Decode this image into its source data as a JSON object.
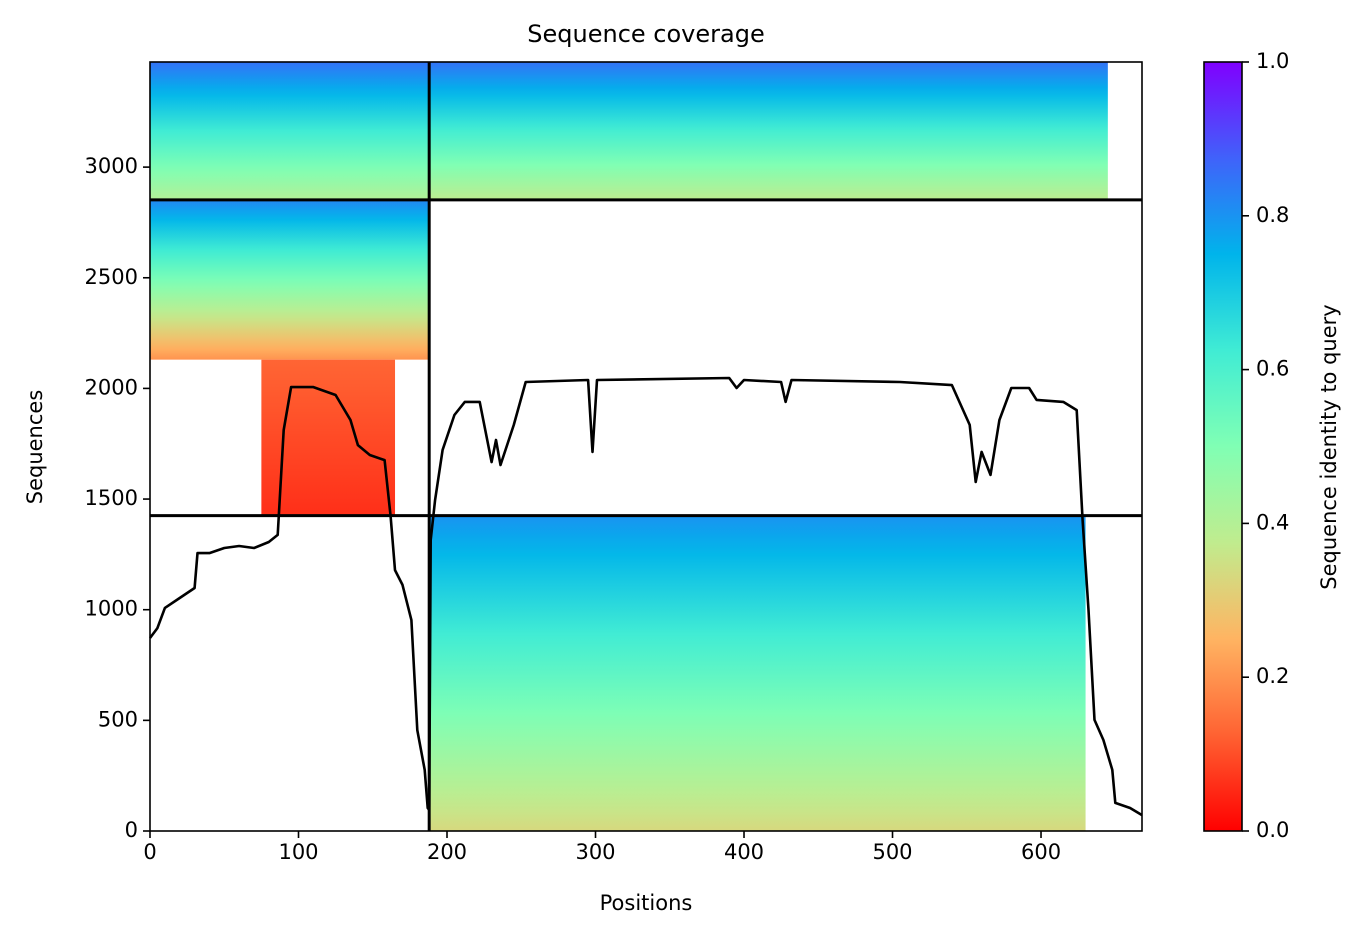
{
  "chart_data": {
    "type": "coverage",
    "title": "Sequence coverage",
    "xlabel": "Positions",
    "ylabel": "Sequences",
    "colorbar_label": "Sequence identity to query",
    "xlim": [
      0,
      668
    ],
    "ylim": [
      0,
      3475
    ],
    "xticks": [
      0,
      100,
      200,
      300,
      400,
      500,
      600
    ],
    "yticks": [
      0,
      500,
      1000,
      1500,
      2000,
      2500,
      3000
    ],
    "clim": [
      0,
      1
    ],
    "cticks": [
      {
        "value": 0,
        "label": "0.0"
      },
      {
        "value": 0.2,
        "label": "0.2"
      },
      {
        "value": 0.4,
        "label": "0.4"
      },
      {
        "value": 0.6,
        "label": "0.6"
      },
      {
        "value": 0.8,
        "label": "0.8"
      },
      {
        "value": 1,
        "label": "1.0"
      }
    ],
    "colormap": [
      "#ff0000",
      "#ff6232",
      "#ffb462",
      "#c0ec8e",
      "#80ffb4",
      "#40ecd4",
      "#00b4eb",
      "#4062fa",
      "#8000ff"
    ],
    "blocks": [
      {
        "x": [
          0,
          188
        ],
        "y": [
          2852,
          3475
        ],
        "identity": [
          0.4,
          0.85
        ]
      },
      {
        "x": [
          188,
          645
        ],
        "y": [
          2852,
          3475
        ],
        "identity": [
          0.38,
          0.85
        ]
      },
      {
        "x": [
          0,
          188
        ],
        "y": [
          2130,
          2852
        ],
        "identity": [
          0.2,
          0.82
        ]
      },
      {
        "x": [
          75,
          165
        ],
        "y": [
          1425,
          2130
        ],
        "identity": [
          0.06,
          0.13
        ]
      },
      {
        "x": [
          188,
          630
        ],
        "y": [
          0,
          1425
        ],
        "identity": [
          0.33,
          0.8
        ]
      }
    ],
    "separators": {
      "color": "#000000",
      "x": [
        188
      ],
      "y": [
        1425,
        2852
      ]
    },
    "line": {
      "color": "#000000",
      "x": [
        0,
        5,
        10,
        20,
        30,
        32,
        40,
        50,
        60,
        70,
        80,
        86,
        90,
        95,
        110,
        125,
        135,
        140,
        148,
        158,
        162,
        165,
        170,
        176,
        180,
        185,
        187,
        188,
        189,
        192,
        197,
        205,
        212,
        222,
        230,
        233,
        236,
        245,
        253,
        295,
        298,
        301,
        390,
        395,
        400,
        425,
        428,
        432,
        505,
        540,
        552,
        556,
        560,
        566,
        572,
        580,
        592,
        597,
        615,
        624,
        628,
        632,
        636,
        642,
        648,
        650,
        660,
        668
      ],
      "values": [
        872,
        917,
        1008,
        1053,
        1098,
        1256,
        1256,
        1279,
        1288,
        1279,
        1306,
        1338,
        1812,
        2006,
        2006,
        1970,
        1857,
        1744,
        1699,
        1676,
        1423,
        1179,
        1112,
        953,
        456,
        276,
        104,
        95,
        1315,
        1496,
        1722,
        1880,
        1939,
        1939,
        1667,
        1767,
        1654,
        1835,
        2029,
        2038,
        1713,
        2038,
        2047,
        2002,
        2038,
        2029,
        1939,
        2038,
        2029,
        2015,
        1835,
        1577,
        1713,
        1609,
        1857,
        2002,
        2002,
        1948,
        1939,
        1902,
        1405,
        999,
        502,
        411,
        276,
        127,
        104,
        72
      ]
    }
  }
}
